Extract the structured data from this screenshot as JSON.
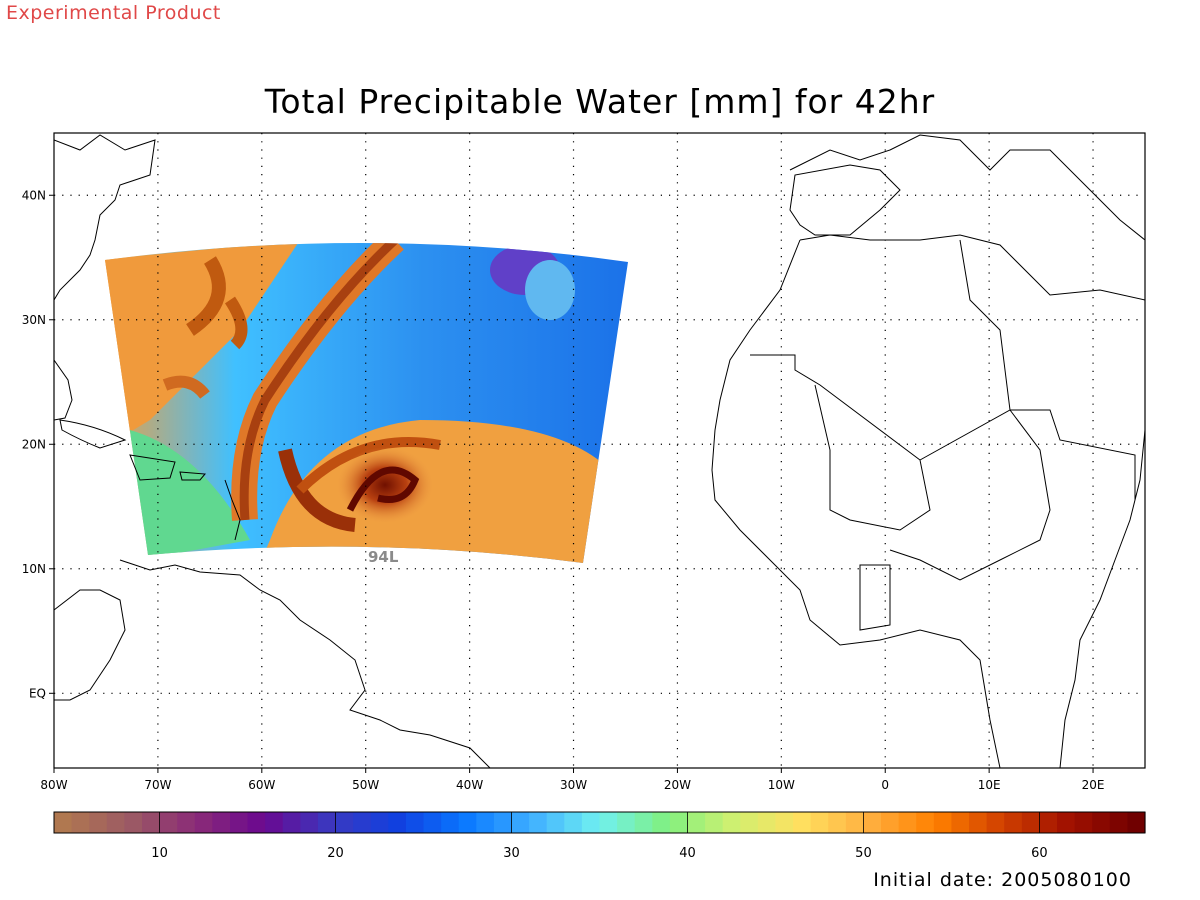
{
  "product_tag": "Experimental Product",
  "title": "Total Precipitable Water [mm] for 42hr",
  "initial_date_text": "Initial date: 2005080100",
  "storm_label": "94L",
  "map": {
    "lon_range": [
      -80,
      25
    ],
    "lat_range": [
      -6,
      45
    ],
    "x_ticks": [
      {
        "lon": -80,
        "label": "80W"
      },
      {
        "lon": -70,
        "label": "70W"
      },
      {
        "lon": -60,
        "label": "60W"
      },
      {
        "lon": -50,
        "label": "50W"
      },
      {
        "lon": -40,
        "label": "40W"
      },
      {
        "lon": -30,
        "label": "30W"
      },
      {
        "lon": -20,
        "label": "20W"
      },
      {
        "lon": -10,
        "label": "10W"
      },
      {
        "lon": 0,
        "label": "0"
      },
      {
        "lon": 10,
        "label": "10E"
      },
      {
        "lon": 20,
        "label": "20E"
      }
    ],
    "y_ticks": [
      {
        "lat": 40,
        "label": "40N"
      },
      {
        "lat": 30,
        "label": "30N"
      },
      {
        "lat": 20,
        "label": "20N"
      },
      {
        "lat": 10,
        "label": "10N"
      },
      {
        "lat": 0,
        "label": "EQ"
      }
    ],
    "grid": "dotted"
  },
  "colorbar": {
    "range": [
      4,
      66
    ],
    "ticks": [
      10,
      20,
      30,
      40,
      50,
      60
    ],
    "tick_labels": [
      "10",
      "20",
      "30",
      "40",
      "50",
      "60"
    ],
    "colors": [
      "#b07850",
      "#9c5a64",
      "#8a2a78",
      "#6a0890",
      "#3a38c0",
      "#1040e0",
      "#0a78ff",
      "#40b0ff",
      "#70f0f0",
      "#80f080",
      "#d0f070",
      "#ffe060",
      "#ffb040",
      "#ff8000",
      "#d04000",
      "#a01000",
      "#700000"
    ]
  },
  "colors": {
    "tag": "#e04848",
    "coast": "#000000",
    "storm_label": "#8a8a8a"
  }
}
